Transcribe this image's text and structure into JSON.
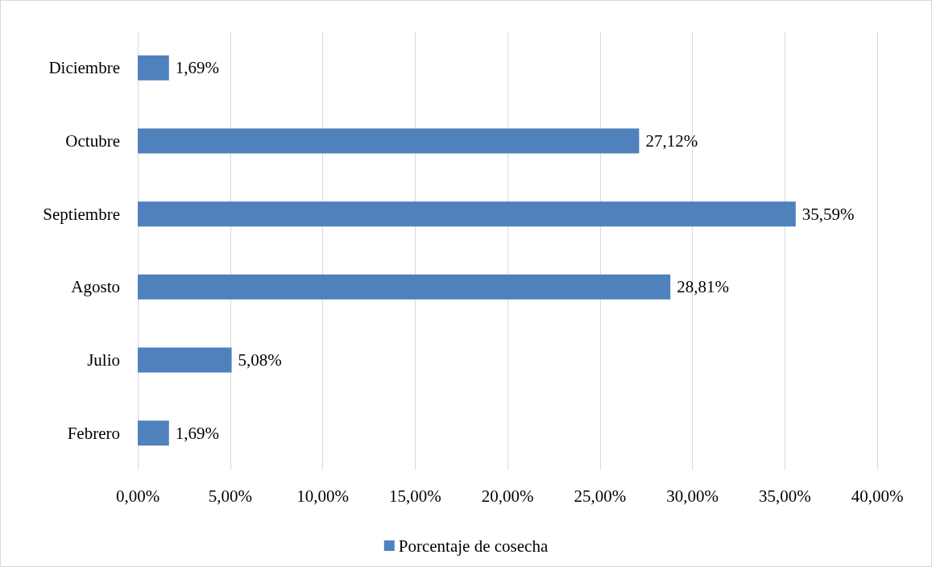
{
  "chart_data": {
    "type": "bar",
    "orientation": "horizontal",
    "categories": [
      "Diciembre",
      "Octubre",
      "Septiembre",
      "Agosto",
      "Julio",
      "Febrero"
    ],
    "series": [
      {
        "name": "Porcentaje de cosecha",
        "color": "#4f81bd",
        "values": [
          1.69,
          27.12,
          35.59,
          28.81,
          5.08,
          1.69
        ],
        "value_labels": [
          "1,69%",
          "27,12%",
          "35,59%",
          "28,81%",
          "5,08%",
          "1,69%"
        ]
      }
    ],
    "xlim": [
      0,
      40
    ],
    "xticks": [
      {
        "value": 0,
        "label": "0,00%"
      },
      {
        "value": 5,
        "label": "5,00%"
      },
      {
        "value": 10,
        "label": "10,00%"
      },
      {
        "value": 15,
        "label": "15,00%"
      },
      {
        "value": 20,
        "label": "20,00%"
      },
      {
        "value": 25,
        "label": "25,00%"
      },
      {
        "value": 30,
        "label": "30,00%"
      },
      {
        "value": 35,
        "label": "35,00%"
      },
      {
        "value": 40,
        "label": "40,00%"
      }
    ],
    "grid": "x",
    "legend": "bottom"
  }
}
